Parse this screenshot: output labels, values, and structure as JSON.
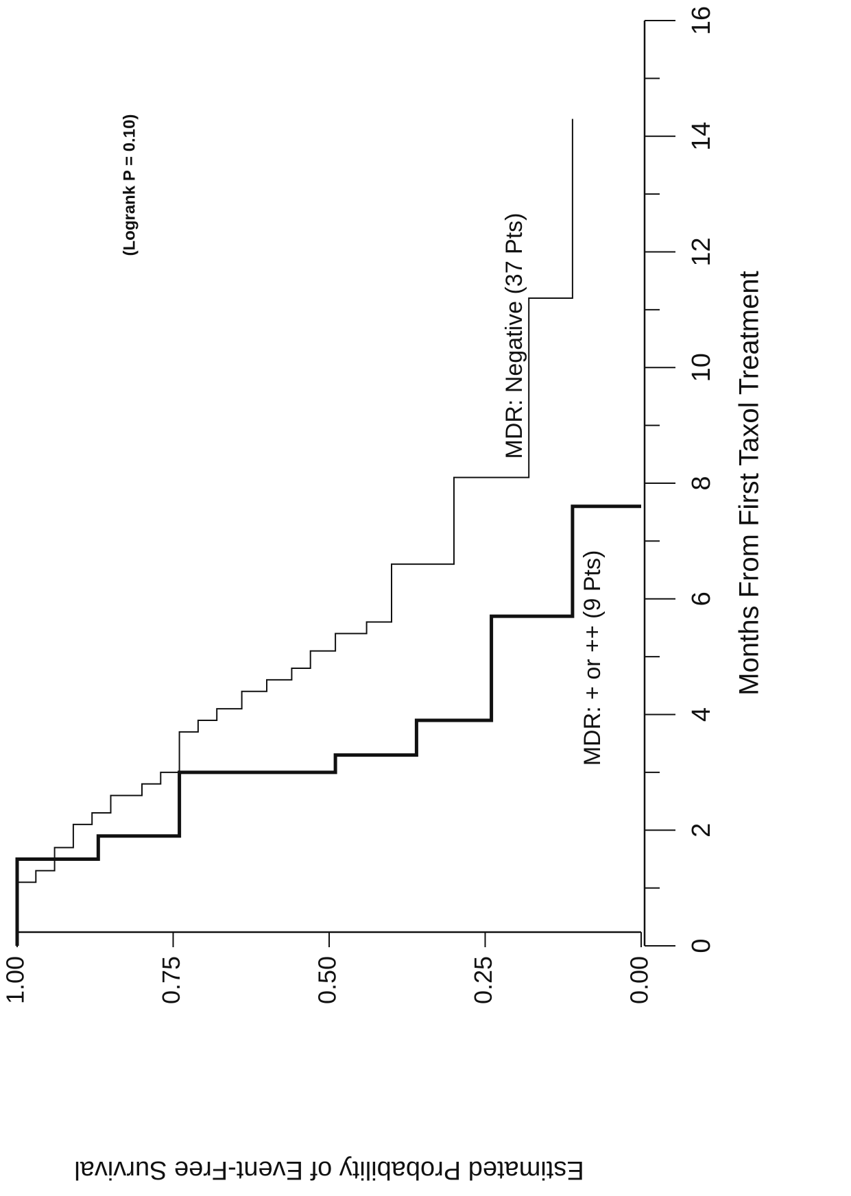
{
  "chart_data": {
    "type": "step",
    "x_label": "Months From First Taxol Treatment",
    "y_label": "Estimated Probability of Event-Free Survival",
    "annotations": [
      "(Logrank P = 0.10)",
      "MDR: Negative  (37 Pts)",
      "MDR: + or ++  (9 Pts)"
    ],
    "xlim": [
      0,
      16
    ],
    "xticks": [
      0,
      2,
      4,
      6,
      8,
      10,
      12,
      14,
      16
    ],
    "xminorticks": [
      1,
      3,
      5,
      7,
      9,
      11,
      13,
      15
    ],
    "ylim": [
      0,
      1
    ],
    "yticks": [
      {
        "value": 0,
        "label": "0.00"
      },
      {
        "value": 0.25,
        "label": "0.25"
      },
      {
        "value": 0.5,
        "label": "0.50"
      },
      {
        "value": 0.75,
        "label": "0.75"
      },
      {
        "value": 1,
        "label": "1.00"
      }
    ],
    "series": [
      {
        "name": "MDR: Negative (37 Pts)",
        "color": "#111",
        "width": 2,
        "x": [
          0,
          1.1,
          1.3,
          1.7,
          2.1,
          2.3,
          2.6,
          2.8,
          3.0,
          3.7,
          3.9,
          4.1,
          4.4,
          4.6,
          4.8,
          5.1,
          5.4,
          5.6,
          6.6,
          8.1,
          11.2,
          14.3
        ],
        "values": [
          1.0,
          0.97,
          0.94,
          0.91,
          0.88,
          0.85,
          0.8,
          0.77,
          0.74,
          0.71,
          0.68,
          0.64,
          0.6,
          0.56,
          0.53,
          0.49,
          0.44,
          0.4,
          0.3,
          0.18,
          0.11,
          0.11
        ]
      },
      {
        "name": "MDR: + or ++ (9 Pts)",
        "color": "#111",
        "width": 5,
        "x": [
          0,
          1.5,
          1.9,
          3.0,
          3.3,
          3.9,
          5.7,
          7.6
        ],
        "values": [
          1.0,
          0.87,
          0.74,
          0.49,
          0.36,
          0.24,
          0.11,
          0.0
        ]
      }
    ]
  }
}
